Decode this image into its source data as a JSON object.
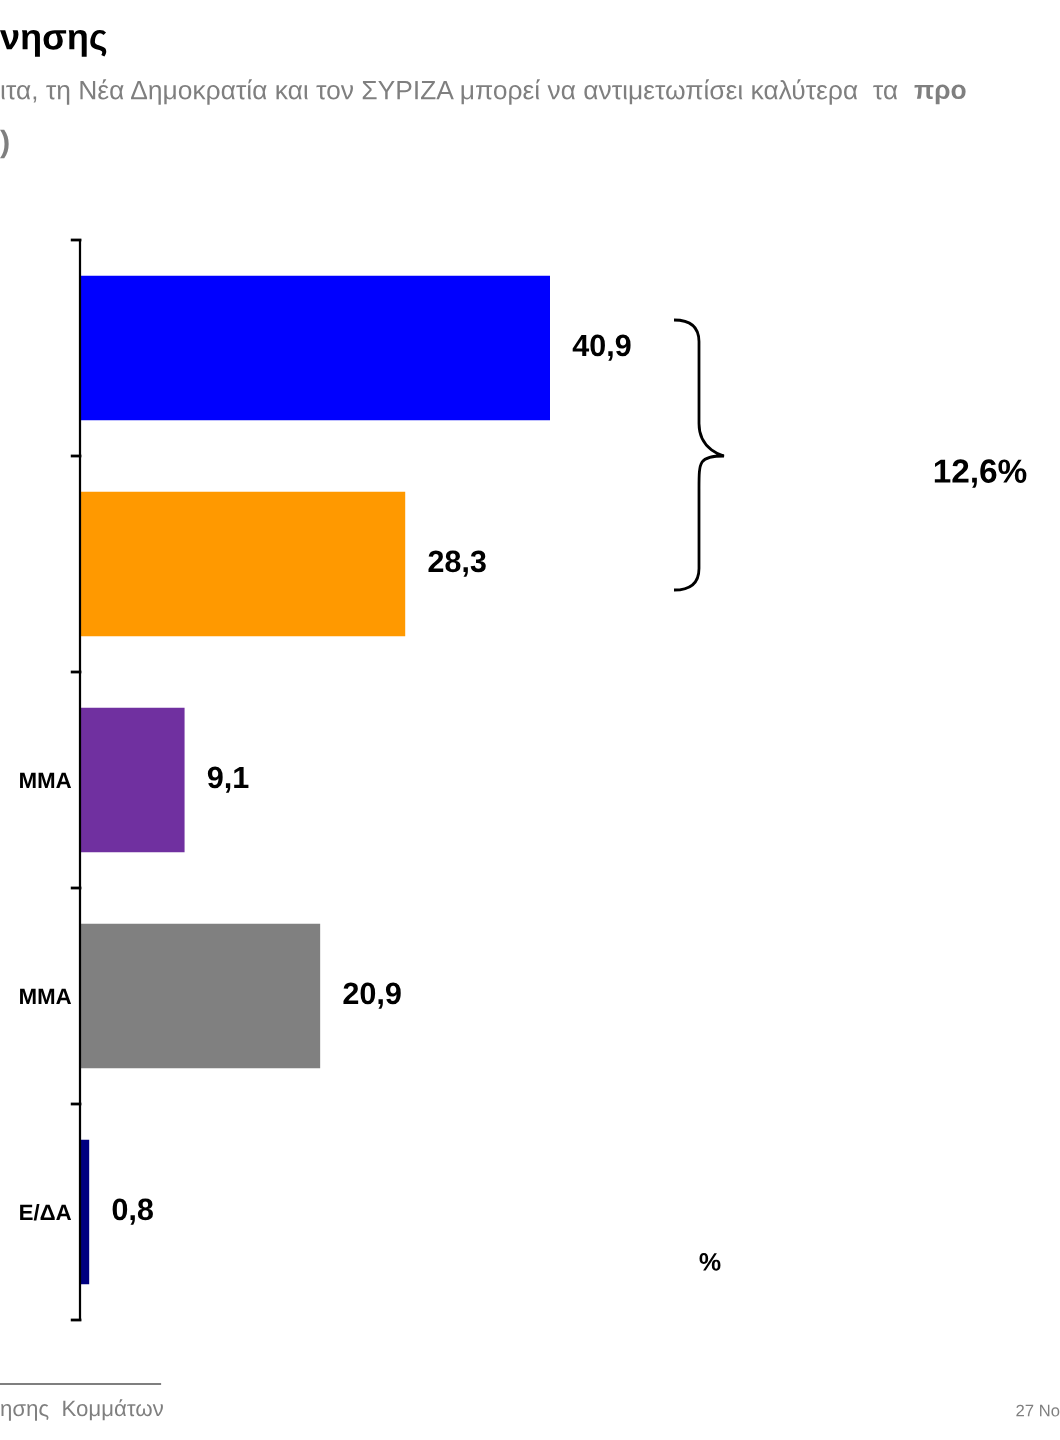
{
  "chart_data": {
    "type": "bar",
    "orientation": "horizontal",
    "title": "νησης",
    "subtitle": "ιτα, τη Νέα Δημοκρατία και τον ΣΥΡΙΖΑ μπορεί να αντιμετωπίσει καλύτερα  τα",
    "categories": [
      null,
      null,
      "ΜΜΑ",
      "ΜΜΑ",
      "Ε/ΔΑ"
    ],
    "values": [
      40.9,
      28.3,
      9.1,
      20.9,
      0.8
    ],
    "colors": [
      "#0000ff",
      "#ff9900",
      "#7030a0",
      "#808080",
      "#000080"
    ],
    "value_labels": [
      "40,9",
      "28,3",
      "9,1",
      "20,9",
      "0,8"
    ],
    "grid": false,
    "legend": false,
    "tick_labels": "y",
    "annotations": [
      "προ",
      ")",
      "12,6%",
      "%",
      "ησης  Κομμάτων",
      "27 Νο"
    ]
  }
}
